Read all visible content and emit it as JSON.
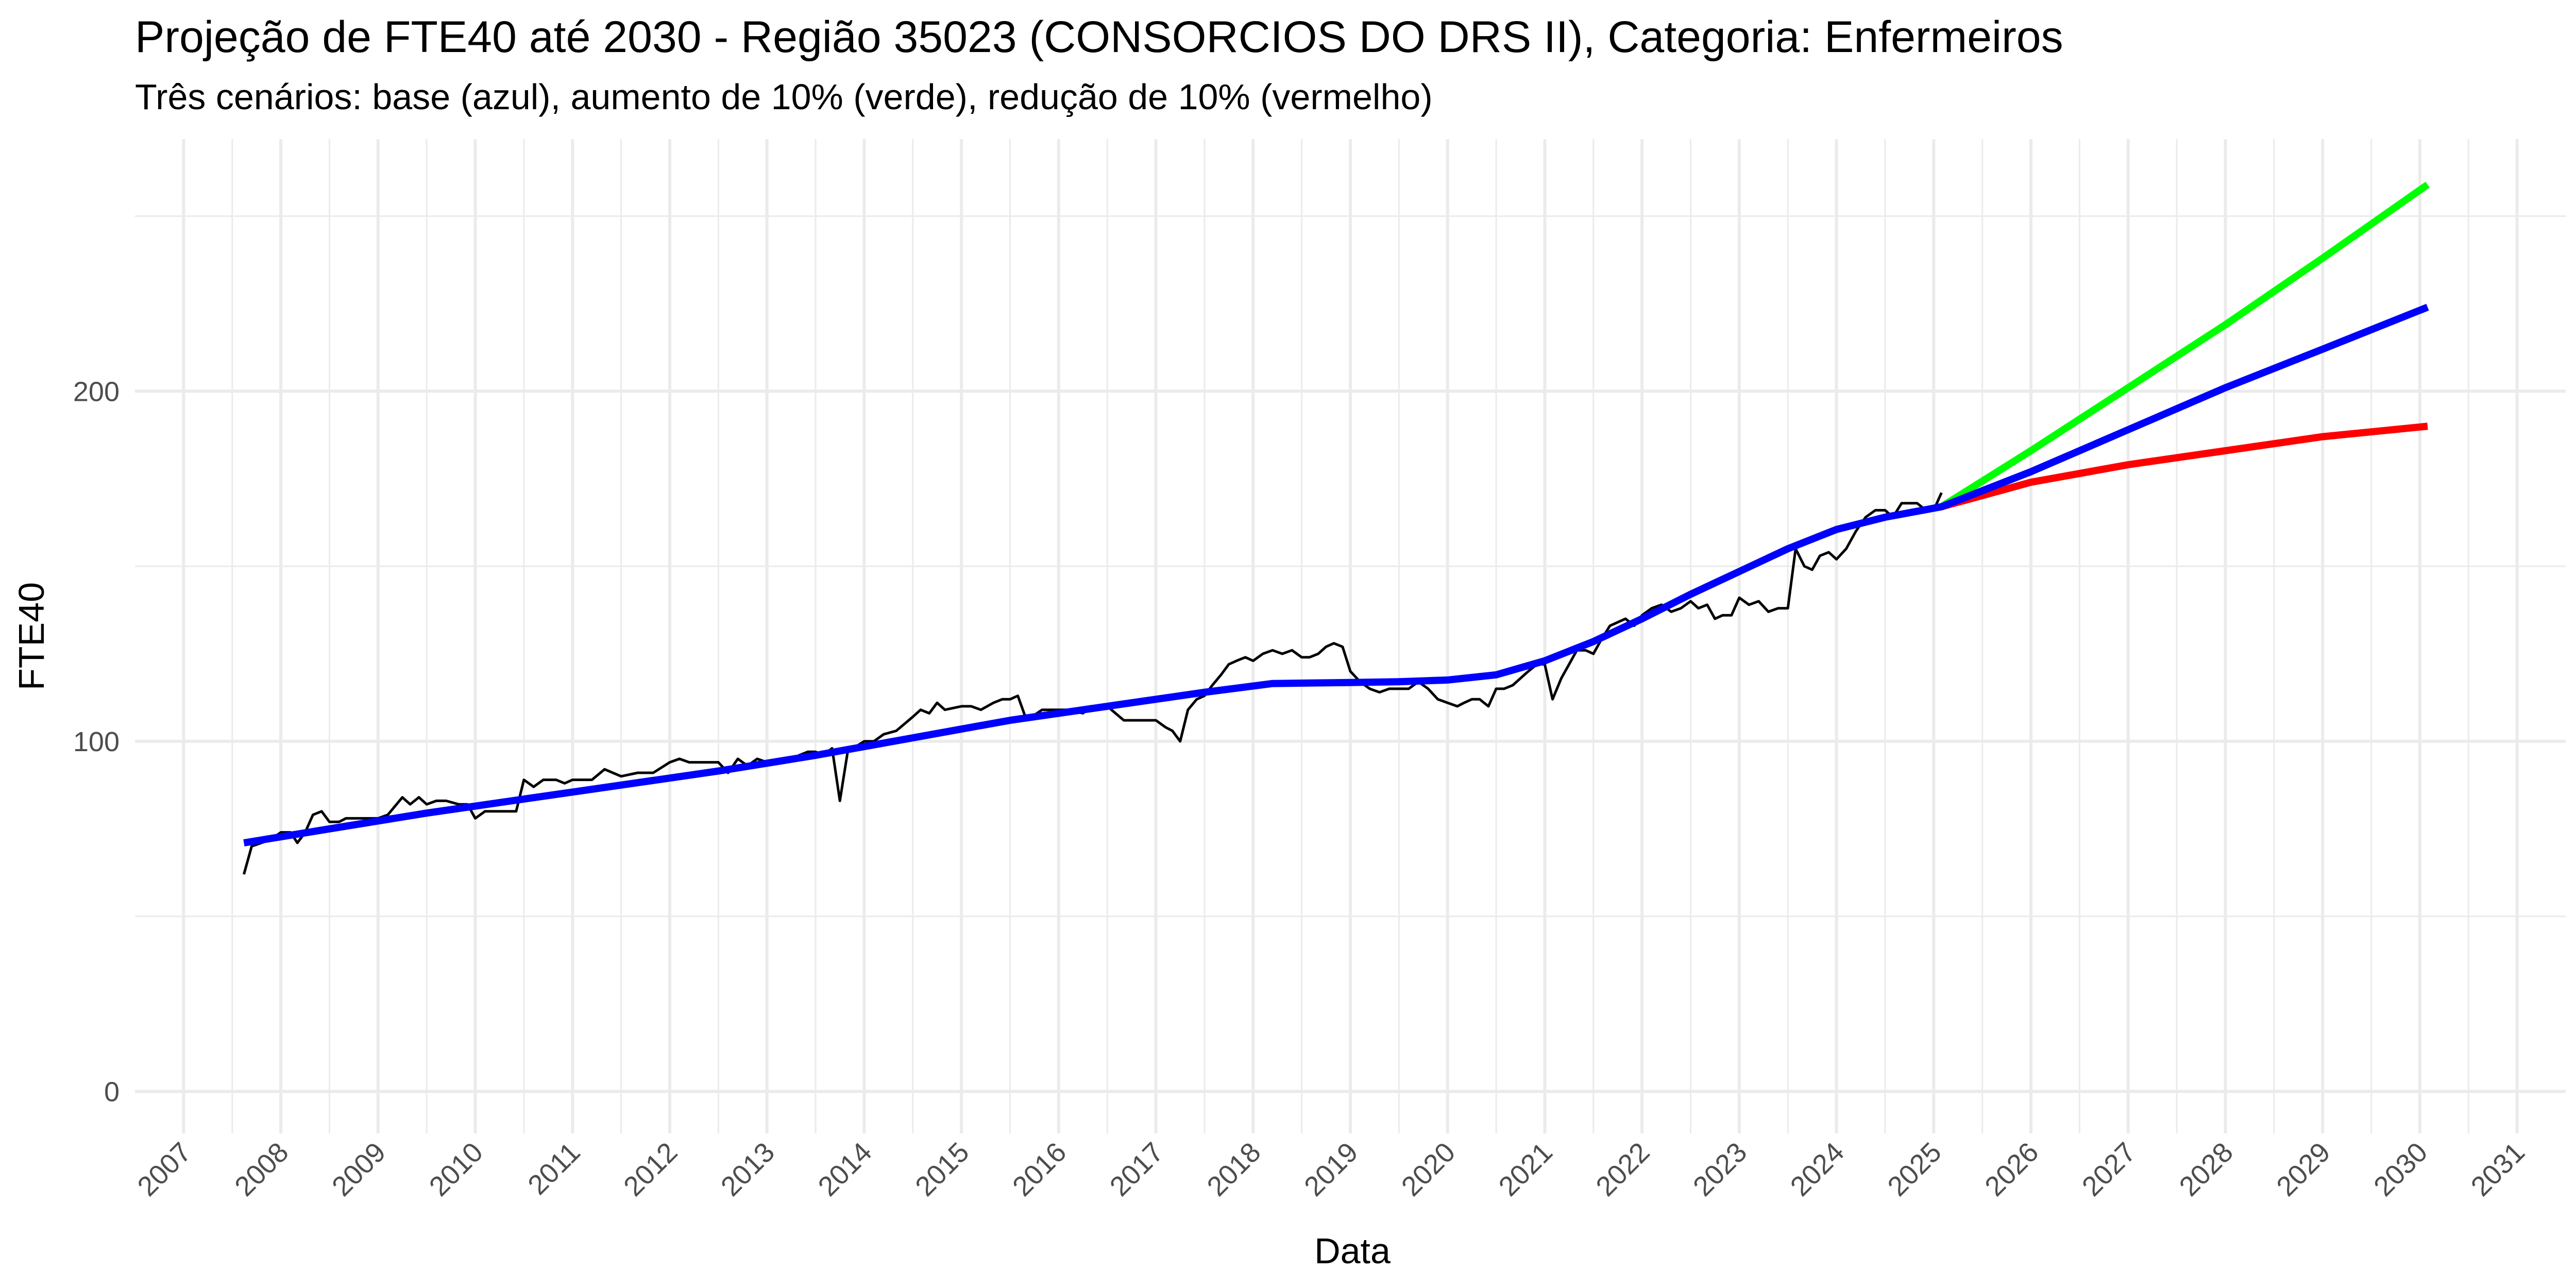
{
  "chart_data": {
    "type": "line",
    "title": "Projeção de FTE40 até 2030 - Região 35023 (CONSORCIOS DO DRS II), Categoria: Enfermeiros",
    "subtitle": "Três cenários: base (azul), aumento de 10% (verde), redução de 10% (vermelho)",
    "xlabel": "Data",
    "ylabel": "FTE40",
    "xlim": [
      2006.5,
      2031.5
    ],
    "ylim": [
      -12,
      272
    ],
    "x_ticks": [
      2007,
      2008,
      2009,
      2010,
      2011,
      2012,
      2013,
      2014,
      2015,
      2016,
      2017,
      2018,
      2019,
      2020,
      2021,
      2022,
      2023,
      2024,
      2025,
      2026,
      2027,
      2028,
      2029,
      2030,
      2031
    ],
    "y_ticks": [
      0,
      100,
      200
    ],
    "grid": true,
    "legend": "none",
    "colors": {
      "observed": "#000000",
      "base": "#0000ff",
      "increase": "#00ff00",
      "decrease": "#ff0000",
      "grid": "#ebebeb"
    },
    "series": [
      {
        "x": [
          2007.62,
          2007.7,
          2007.8,
          2007.9,
          2008.0,
          2008.1,
          2008.17,
          2008.25,
          2008.33,
          2008.42,
          2008.5,
          2008.6,
          2008.67,
          2008.75,
          2008.85,
          2009.0,
          2009.1,
          2009.25,
          2009.33,
          2009.42,
          2009.5,
          2009.6,
          2009.7,
          2009.83,
          2009.92,
          2010.0,
          2010.1,
          2010.25,
          2010.33,
          2010.42,
          2010.5,
          2010.6,
          2010.7,
          2010.83,
          2010.92,
          2011.0,
          2011.1,
          2011.2,
          2011.33,
          2011.5,
          2011.67,
          2011.83,
          2012.0,
          2012.1,
          2012.2,
          2012.33,
          2012.5,
          2012.6,
          2012.7,
          2012.8,
          2012.9,
          2013.0,
          2013.1,
          2013.2,
          2013.33,
          2013.42,
          2013.5,
          2013.58,
          2013.67,
          2013.75,
          2013.83,
          2014.0,
          2014.1,
          2014.2,
          2014.33,
          2014.5,
          2014.58,
          2014.67,
          2014.75,
          2014.83,
          2015.0,
          2015.1,
          2015.2,
          2015.33,
          2015.42,
          2015.5,
          2015.58,
          2015.67,
          2015.83,
          2016.0,
          2016.1,
          2016.25,
          2016.33,
          2016.5,
          2016.67,
          2016.83,
          2017.0,
          2017.1,
          2017.17,
          2017.25,
          2017.33,
          2017.42,
          2017.5,
          2017.58,
          2017.67,
          2017.75,
          2017.83,
          2017.92,
          2018.0,
          2018.1,
          2018.2,
          2018.3,
          2018.4,
          2018.5,
          2018.58,
          2018.67,
          2018.75,
          2018.83,
          2018.92,
          2019.0,
          2019.1,
          2019.2,
          2019.3,
          2019.4,
          2019.5,
          2019.6,
          2019.7,
          2019.8,
          2019.9,
          2020.0,
          2020.1,
          2020.17,
          2020.25,
          2020.33,
          2020.42,
          2020.5,
          2020.58,
          2020.67,
          2020.75,
          2020.83,
          2020.92,
          2021.0,
          2021.08,
          2021.17,
          2021.25,
          2021.33,
          2021.42,
          2021.5,
          2021.58,
          2021.67,
          2021.75,
          2021.83,
          2021.92,
          2022.0,
          2022.1,
          2022.2,
          2022.3,
          2022.4,
          2022.5,
          2022.58,
          2022.67,
          2022.75,
          2022.83,
          2022.92,
          2023.0,
          2023.1,
          2023.2,
          2023.3,
          2023.4,
          2023.5,
          2023.58,
          2023.67,
          2023.75,
          2023.83,
          2023.92,
          2024.0,
          2024.1,
          2024.2,
          2024.3,
          2024.4,
          2024.5,
          2024.58,
          2024.67,
          2024.75,
          2024.83,
          2024.92,
          2025.0,
          2025.08
        ],
        "y": [
          62,
          70,
          71,
          72,
          74,
          74,
          71,
          74,
          79,
          80,
          77,
          77,
          78,
          78,
          78,
          78,
          79,
          84,
          82,
          84,
          82,
          83,
          83,
          82,
          82,
          78,
          80,
          80,
          80,
          80,
          89,
          87,
          89,
          89,
          88,
          89,
          89,
          89,
          92,
          90,
          91,
          91,
          94,
          95,
          94,
          94,
          94,
          91,
          95,
          93,
          95,
          94,
          94,
          94,
          96,
          97,
          97,
          96,
          98,
          83,
          97,
          100,
          100,
          102,
          103,
          107,
          109,
          108,
          111,
          109,
          110,
          110,
          109,
          111,
          112,
          112,
          113,
          106,
          109,
          109,
          109,
          108,
          110,
          110,
          106,
          106,
          106,
          104,
          103,
          100,
          109,
          112,
          113,
          116,
          119,
          122,
          123,
          124,
          123,
          125,
          126,
          125,
          126,
          124,
          124,
          125,
          127,
          128,
          127,
          120,
          117,
          115,
          114,
          115,
          115,
          115,
          117,
          115,
          112,
          111,
          110,
          111,
          112,
          112,
          110,
          115,
          115,
          116,
          118,
          120,
          122,
          122,
          112,
          118,
          122,
          126,
          126,
          125,
          129,
          133,
          134,
          135,
          133,
          136,
          138,
          139,
          137,
          138,
          140,
          138,
          139,
          135,
          136,
          136,
          141,
          139,
          140,
          137,
          138,
          138,
          155,
          150,
          149,
          153,
          154,
          152,
          155,
          160,
          164,
          166,
          166,
          164,
          168,
          168,
          168,
          166,
          166,
          171
        ]
      },
      {
        "x": [
          2007.62,
          2008.5,
          2009.5,
          2010.5,
          2011.5,
          2012.5,
          2013.5,
          2014.5,
          2015.5,
          2016.5,
          2017.5,
          2018.2,
          2019.0,
          2019.5,
          2020.0,
          2020.5,
          2021.0,
          2021.5,
          2022.0,
          2022.5,
          2023.0,
          2023.5,
          2024.0,
          2024.5,
          2025.08,
          2026.0,
          2027.0,
          2028.0,
          2029.0,
          2030.08
        ],
        "y": [
          71,
          75,
          79.5,
          83.5,
          87.5,
          91.5,
          96,
          101,
          106,
          110,
          114,
          116.5,
          116.8,
          117,
          117.5,
          119,
          123,
          128.5,
          135,
          142,
          148.5,
          155,
          160.5,
          164,
          167,
          177,
          189,
          201,
          212,
          224
        ]
      },
      {
        "x": [
          2025.08,
          2026.0,
          2027.0,
          2028.0,
          2029.0,
          2030.08
        ],
        "y": [
          167,
          183,
          201,
          219,
          238,
          259
        ]
      },
      {
        "x": [
          2025.08,
          2026.0,
          2027.0,
          2028.0,
          2029.0,
          2030.08
        ],
        "y": [
          167,
          174,
          179,
          183,
          187,
          190
        ]
      }
    ]
  }
}
